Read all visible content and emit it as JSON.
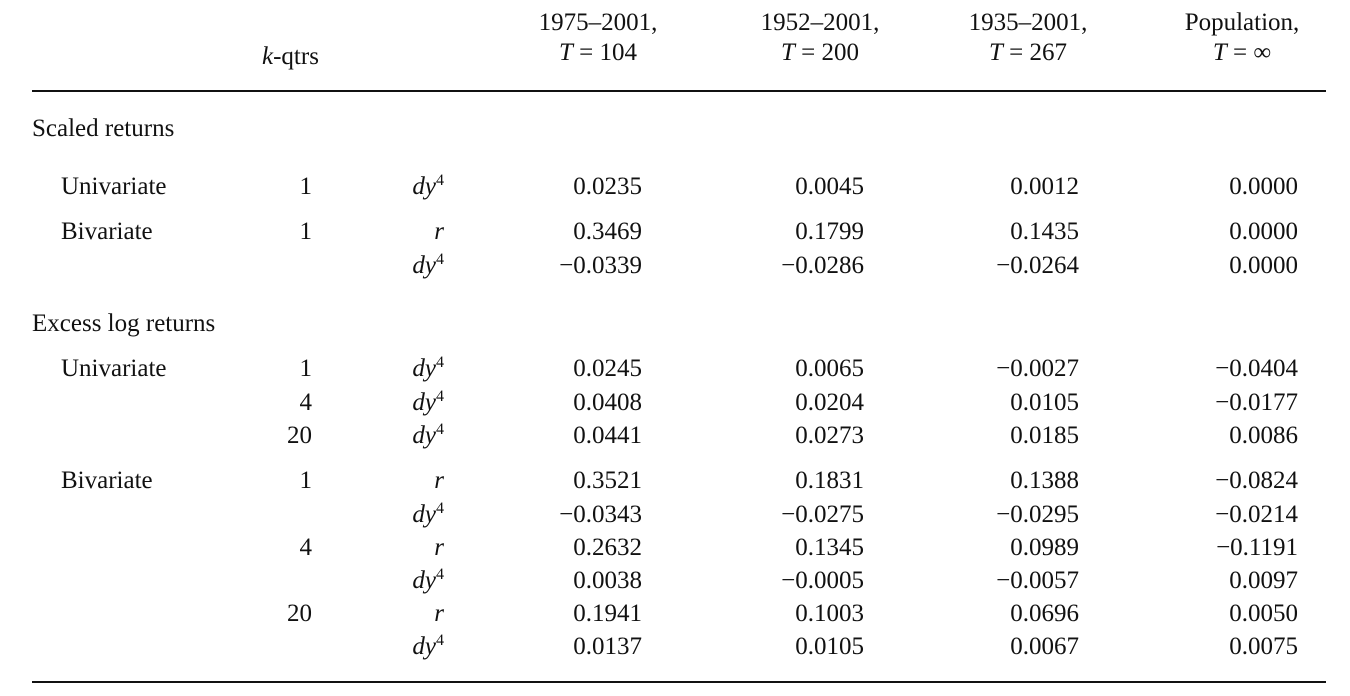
{
  "header": {
    "kqtrs_italic": "k",
    "kqtrs_rest": "-qtrs",
    "columns": [
      {
        "line1": "1975–2001,",
        "tvar": "T",
        "tval": " = 104"
      },
      {
        "line1": "1952–2001,",
        "tvar": "T",
        "tval": " = 200"
      },
      {
        "line1": "1935–2001,",
        "tvar": "T",
        "tval": " = 267"
      },
      {
        "line1": "Population,",
        "tvar": "T",
        "tval": " = ∞"
      }
    ]
  },
  "sections": [
    {
      "title": "Scaled returns"
    },
    {
      "title": "Excess log returns"
    }
  ],
  "rows": [
    {
      "label": "Univariate",
      "k": "1",
      "var_base": "dy",
      "var_sup": "4",
      "vals": [
        "0.0235",
        "0.0045",
        "0.0012",
        "0.0000"
      ]
    },
    {
      "label": "Bivariate",
      "k": "1",
      "var_base": "r",
      "var_sup": "",
      "vals": [
        "0.3469",
        "0.1799",
        "0.1435",
        "0.0000"
      ]
    },
    {
      "label": "",
      "k": "",
      "var_base": "dy",
      "var_sup": "4",
      "vals": [
        "−0.0339",
        "−0.0286",
        "−0.0264",
        "0.0000"
      ]
    },
    {
      "label": "Univariate",
      "k": "1",
      "var_base": "dy",
      "var_sup": "4",
      "vals": [
        "0.0245",
        "0.0065",
        "−0.0027",
        "−0.0404"
      ]
    },
    {
      "label": "",
      "k": "4",
      "var_base": "dy",
      "var_sup": "4",
      "vals": [
        "0.0408",
        "0.0204",
        "0.0105",
        "−0.0177"
      ]
    },
    {
      "label": "",
      "k": "20",
      "var_base": "dy",
      "var_sup": "4",
      "vals": [
        "0.0441",
        "0.0273",
        "0.0185",
        "0.0086"
      ]
    },
    {
      "label": "Bivariate",
      "k": "1",
      "var_base": "r",
      "var_sup": "",
      "vals": [
        "0.3521",
        "0.1831",
        "0.1388",
        "−0.0824"
      ]
    },
    {
      "label": "",
      "k": "",
      "var_base": "dy",
      "var_sup": "4",
      "vals": [
        "−0.0343",
        "−0.0275",
        "−0.0295",
        "−0.0214"
      ]
    },
    {
      "label": "",
      "k": "4",
      "var_base": "r",
      "var_sup": "",
      "vals": [
        "0.2632",
        "0.1345",
        "0.0989",
        "−0.1191"
      ]
    },
    {
      "label": "",
      "k": "",
      "var_base": "dy",
      "var_sup": "4",
      "vals": [
        "0.0038",
        "−0.0005",
        "−0.0057",
        "0.0097"
      ]
    },
    {
      "label": "",
      "k": "20",
      "var_base": "r",
      "var_sup": "",
      "vals": [
        "0.1941",
        "0.1003",
        "0.0696",
        "0.0050"
      ]
    },
    {
      "label": "",
      "k": "",
      "var_base": "dy",
      "var_sup": "4",
      "vals": [
        "0.0137",
        "0.0105",
        "0.0067",
        "0.0075"
      ]
    }
  ]
}
